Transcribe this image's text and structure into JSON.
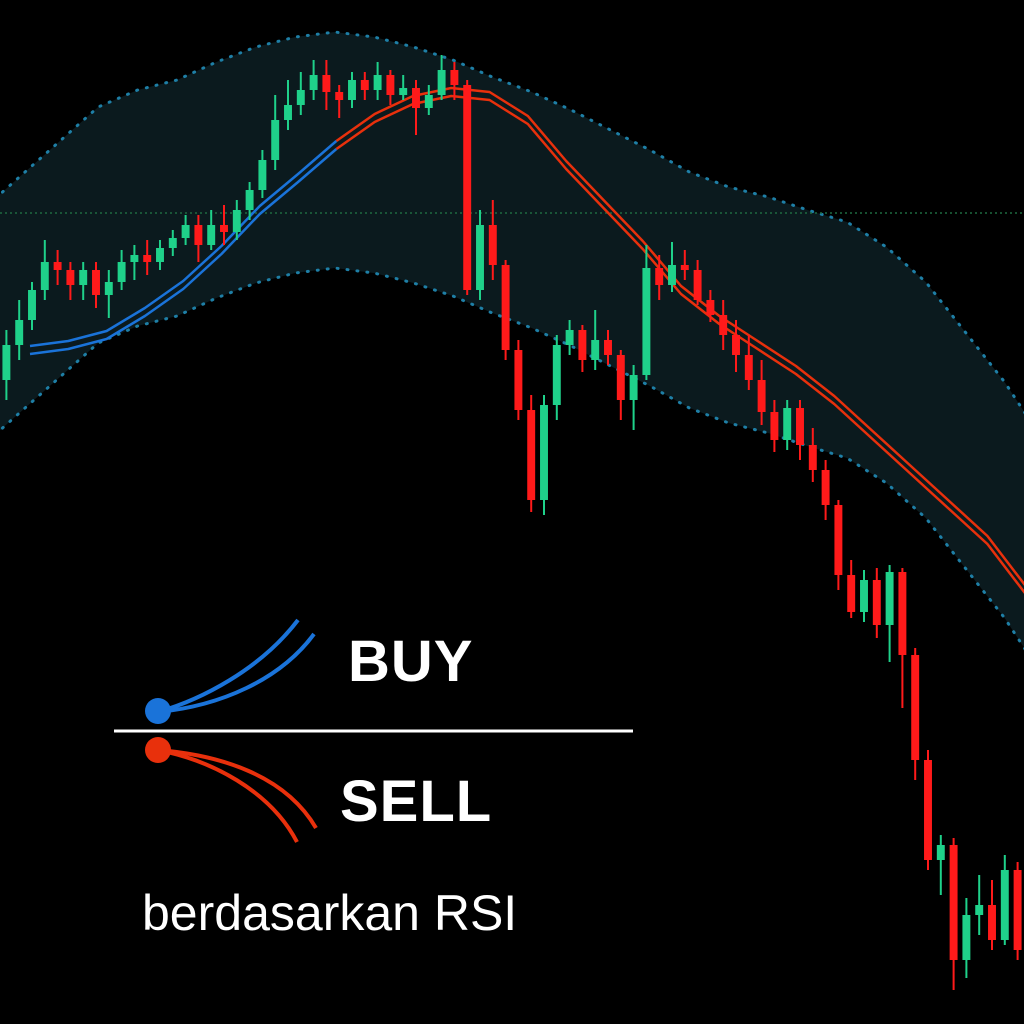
{
  "legend": {
    "buy_label": "BUY",
    "sell_label": "SELL",
    "caption": "berdasarkan RSI"
  },
  "colors": {
    "background": "#000000",
    "bull_candle": "#1fd18a",
    "bear_candle": "#ff1a1a",
    "band_fill": "#0b1a1e",
    "band_dots": "#1e7fa6",
    "ma_buy": "#1a73d9",
    "ma_sell": "#e8300c",
    "price_line": "#1e6b40",
    "legend_divider": "#ffffff"
  },
  "chart_data": {
    "type": "candlestick",
    "grid": false,
    "horizontal_price_line": 213,
    "candles": [
      [
        380,
        345,
        400,
        330
      ],
      [
        345,
        320,
        360,
        300
      ],
      [
        320,
        290,
        330,
        282
      ],
      [
        290,
        262,
        300,
        240
      ],
      [
        262,
        270,
        285,
        250
      ],
      [
        270,
        285,
        300,
        262
      ],
      [
        285,
        270,
        300,
        262
      ],
      [
        270,
        295,
        308,
        262
      ],
      [
        295,
        282,
        318,
        270
      ],
      [
        282,
        262,
        290,
        250
      ],
      [
        262,
        255,
        280,
        245
      ],
      [
        255,
        262,
        275,
        240
      ],
      [
        262,
        248,
        270,
        240
      ],
      [
        248,
        238,
        256,
        230
      ],
      [
        238,
        225,
        245,
        215
      ],
      [
        225,
        245,
        262,
        215
      ],
      [
        245,
        225,
        250,
        210
      ],
      [
        225,
        232,
        245,
        205
      ],
      [
        232,
        210,
        240,
        200
      ],
      [
        210,
        190,
        220,
        182
      ],
      [
        190,
        160,
        198,
        150
      ],
      [
        160,
        120,
        170,
        95
      ],
      [
        120,
        105,
        130,
        80
      ],
      [
        105,
        90,
        115,
        72
      ],
      [
        90,
        75,
        100,
        60
      ],
      [
        75,
        92,
        110,
        60
      ],
      [
        92,
        100,
        118,
        85
      ],
      [
        100,
        80,
        108,
        72
      ],
      [
        80,
        90,
        100,
        72
      ],
      [
        90,
        75,
        100,
        62
      ],
      [
        75,
        95,
        105,
        70
      ],
      [
        95,
        88,
        100,
        75
      ],
      [
        88,
        108,
        135,
        80
      ],
      [
        108,
        95,
        115,
        85
      ],
      [
        95,
        70,
        100,
        55
      ],
      [
        70,
        85,
        100,
        62
      ],
      [
        85,
        290,
        295,
        80
      ],
      [
        290,
        225,
        300,
        210
      ],
      [
        225,
        265,
        280,
        200
      ],
      [
        265,
        350,
        360,
        260
      ],
      [
        350,
        410,
        420,
        340
      ],
      [
        410,
        500,
        512,
        395
      ],
      [
        500,
        405,
        515,
        395
      ],
      [
        405,
        345,
        420,
        335
      ],
      [
        345,
        330,
        355,
        320
      ],
      [
        330,
        360,
        372,
        325
      ],
      [
        360,
        340,
        370,
        310
      ],
      [
        340,
        355,
        365,
        330
      ],
      [
        355,
        400,
        420,
        350
      ],
      [
        400,
        375,
        430,
        365
      ],
      [
        375,
        268,
        380,
        245
      ],
      [
        268,
        285,
        300,
        255
      ],
      [
        285,
        265,
        292,
        242
      ],
      [
        265,
        270,
        280,
        250
      ],
      [
        270,
        300,
        305,
        260
      ],
      [
        300,
        315,
        322,
        290
      ],
      [
        315,
        335,
        350,
        300
      ],
      [
        335,
        355,
        372,
        320
      ],
      [
        355,
        380,
        390,
        335
      ],
      [
        380,
        412,
        425,
        360
      ],
      [
        412,
        440,
        452,
        400
      ],
      [
        440,
        408,
        450,
        400
      ],
      [
        408,
        445,
        460,
        400
      ],
      [
        445,
        470,
        482,
        428
      ],
      [
        470,
        505,
        520,
        460
      ],
      [
        505,
        575,
        590,
        500
      ],
      [
        575,
        612,
        618,
        560
      ],
      [
        612,
        580,
        622,
        570
      ],
      [
        580,
        625,
        638,
        568
      ],
      [
        625,
        572,
        662,
        565
      ],
      [
        572,
        655,
        708,
        568
      ],
      [
        655,
        760,
        780,
        648
      ],
      [
        760,
        860,
        870,
        750
      ],
      [
        860,
        845,
        895,
        835
      ],
      [
        845,
        960,
        990,
        838
      ],
      [
        960,
        915,
        978,
        898
      ],
      [
        915,
        905,
        935,
        875
      ],
      [
        905,
        940,
        950,
        880
      ],
      [
        940,
        870,
        945,
        855
      ],
      [
        870,
        950,
        960,
        862
      ]
    ],
    "bands": {
      "center": [
        330,
        295,
        260,
        225,
        208,
        198,
        180,
        165,
        155,
        150,
        155,
        165,
        178,
        195,
        210,
        228,
        248,
        268,
        290,
        305,
        315,
        328,
        340,
        365,
        400,
        450,
        500,
        560
      ],
      "half_width": 118
    },
    "ma_turn_index": 8,
    "ma": [
      350,
      345,
      335,
      312,
      285,
      250,
      210,
      178,
      145,
      118,
      100,
      92,
      96,
      120,
      165,
      205,
      245,
      290,
      320,
      345,
      370,
      400,
      435,
      470,
      505,
      540,
      590,
      640
    ]
  }
}
